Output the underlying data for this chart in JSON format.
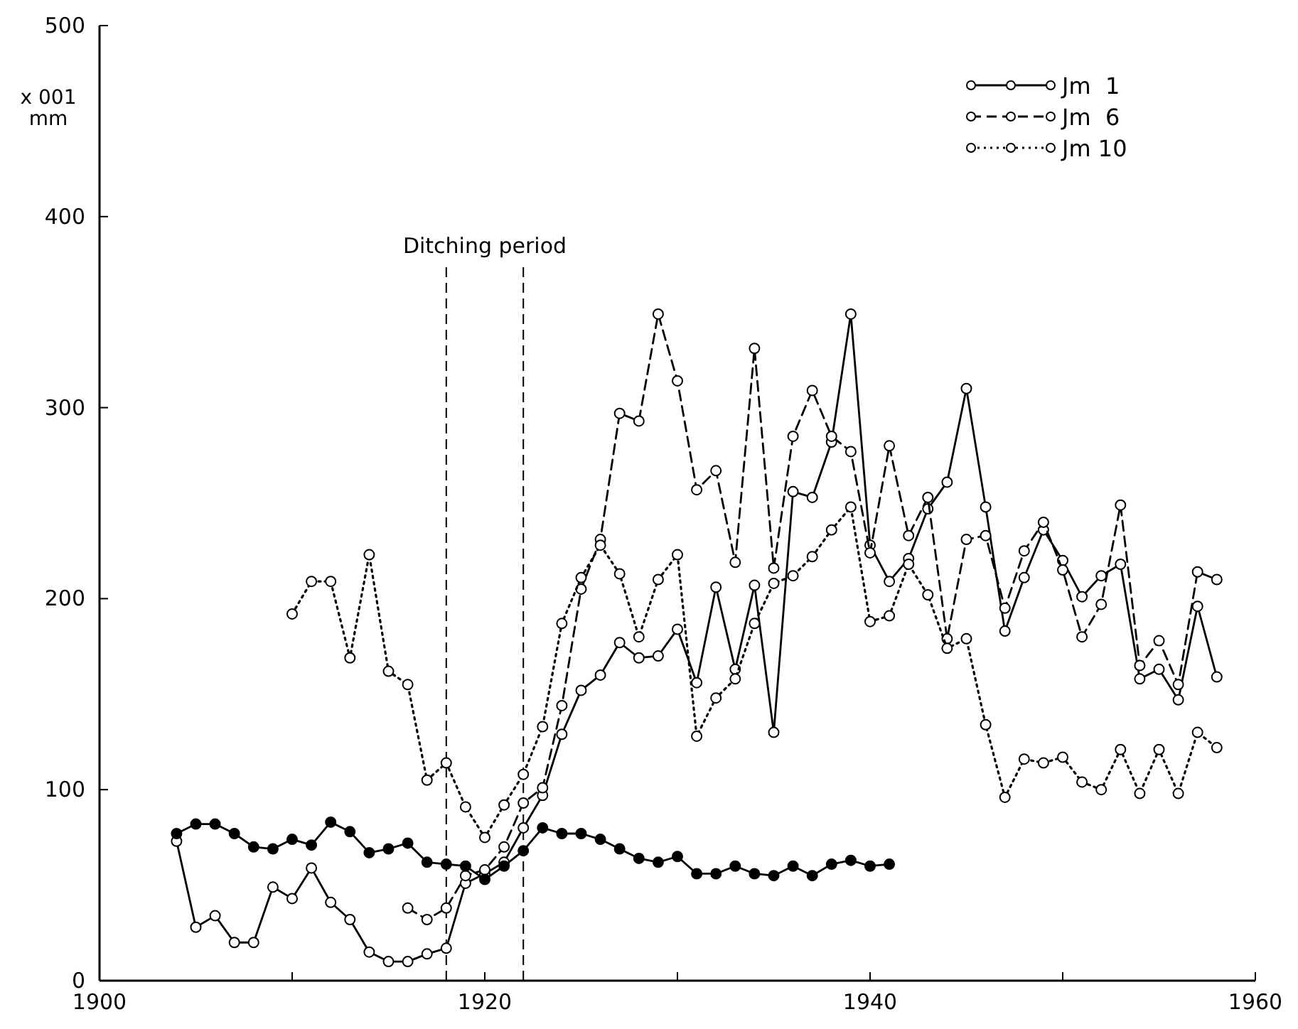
{
  "chart_data": {
    "type": "line",
    "ylabel": "x 001 mm",
    "xlim": [
      1900,
      1960
    ],
    "xticks": [
      1900,
      {
        "value": 1910,
        "label": null
      },
      1920,
      {
        "value": 1930,
        "label": null
      },
      1940,
      {
        "value": 1950,
        "label": null
      },
      1960
    ],
    "ylim": [
      0,
      500
    ],
    "yticks": [
      0,
      100,
      200,
      300,
      400,
      500
    ],
    "grid": false,
    "legend": "top right",
    "marker": "circle",
    "ref_lines": [
      {
        "axis": "x",
        "value": 1918,
        "line_style": "dashed"
      },
      {
        "axis": "x",
        "value": 1922,
        "line_style": "dashed"
      }
    ],
    "annotations": [
      "Ditching period"
    ],
    "series": [
      {
        "name": "Jm  1",
        "color": "#000000",
        "line_style": "solid",
        "x": [
          1904,
          1905,
          1906,
          1907,
          1908,
          1909,
          1910,
          1911,
          1912,
          1913,
          1914,
          1915,
          1916,
          1917,
          1918,
          1919,
          1920,
          1921,
          1922,
          1923,
          1924,
          1925,
          1926,
          1927,
          1928,
          1929,
          1930,
          1931,
          1932,
          1933,
          1934,
          1935,
          1936,
          1937,
          1938,
          1939,
          1940,
          1941,
          1942,
          1943,
          1944,
          1945,
          1946,
          1947,
          1948,
          1949,
          1950,
          1951,
          1952,
          1953,
          1954,
          1955,
          1956,
          1957,
          1958
        ],
        "values": [
          73,
          28,
          34,
          20,
          20,
          49,
          43,
          59,
          41,
          32,
          15,
          10,
          10,
          14,
          17,
          51,
          56,
          62,
          80,
          97,
          129,
          152,
          160,
          177,
          169,
          170,
          184,
          156,
          206,
          163,
          207,
          130,
          256,
          253,
          282,
          349,
          228,
          209,
          221,
          247,
          261,
          310,
          248,
          183,
          211,
          236,
          220,
          201,
          212,
          218,
          158,
          163,
          147,
          196,
          159
        ]
      },
      {
        "name": "Jm  6",
        "color": "#000000",
        "line_style": "dashed",
        "x": [
          1916,
          1917,
          1918,
          1919,
          1920,
          1921,
          1922,
          1923,
          1924,
          1925,
          1926,
          1927,
          1928,
          1929,
          1930,
          1931,
          1932,
          1933,
          1934,
          1935,
          1936,
          1937,
          1938,
          1939,
          1940,
          1941,
          1942,
          1943,
          1944,
          1945,
          1946,
          1947,
          1948,
          1949,
          1950,
          1951,
          1952,
          1953,
          1954,
          1955,
          1956,
          1957,
          1958
        ],
        "values": [
          38,
          32,
          38,
          55,
          58,
          70,
          93,
          101,
          144,
          205,
          231,
          297,
          293,
          349,
          314,
          257,
          267,
          219,
          331,
          216,
          285,
          309,
          285,
          277,
          224,
          280,
          233,
          253,
          179,
          231,
          233,
          195,
          225,
          240,
          215,
          180,
          197,
          249,
          165,
          178,
          155,
          214,
          210
        ]
      },
      {
        "name": "Jm 10",
        "color": "#000000",
        "line_style": "dotted",
        "x": [
          1910,
          1911,
          1912,
          1913,
          1914,
          1915,
          1916,
          1917,
          1918,
          1919,
          1920,
          1921,
          1922,
          1923,
          1924,
          1925,
          1926,
          1927,
          1928,
          1929,
          1930,
          1931,
          1932,
          1933,
          1934,
          1935,
          1936,
          1937,
          1938,
          1939,
          1940,
          1941,
          1942,
          1943,
          1944,
          1945,
          1946,
          1947,
          1948,
          1949,
          1950,
          1951,
          1952,
          1953,
          1954,
          1955,
          1956,
          1957,
          1958
        ],
        "values": [
          192,
          209,
          209,
          169,
          223,
          162,
          155,
          105,
          114,
          91,
          75,
          92,
          108,
          133,
          187,
          211,
          228,
          213,
          180,
          210,
          223,
          128,
          148,
          158,
          187,
          208,
          212,
          222,
          236,
          248,
          188,
          191,
          218,
          202,
          174,
          179,
          134,
          96,
          116,
          114,
          117,
          104,
          100,
          121,
          98,
          121,
          98,
          130,
          122
        ]
      },
      {
        "color": "#000000",
        "line_style": "solid",
        "x": [
          1904,
          1905,
          1906,
          1907,
          1908,
          1909,
          1910,
          1911,
          1912,
          1913,
          1914,
          1915,
          1916,
          1917,
          1918,
          1919,
          1920,
          1921,
          1922,
          1923,
          1924,
          1925,
          1926,
          1927,
          1928,
          1929,
          1930,
          1931,
          1932,
          1933,
          1934,
          1935,
          1936,
          1937,
          1938,
          1939,
          1940,
          1941
        ],
        "values": [
          77,
          82,
          82,
          77,
          70,
          69,
          74,
          71,
          83,
          78,
          67,
          69,
          72,
          62,
          61,
          60,
          53,
          60,
          68,
          80,
          77,
          77,
          74,
          69,
          64,
          62,
          65,
          56,
          56,
          60,
          56,
          55,
          60,
          55,
          61,
          63,
          60,
          61
        ]
      }
    ]
  }
}
